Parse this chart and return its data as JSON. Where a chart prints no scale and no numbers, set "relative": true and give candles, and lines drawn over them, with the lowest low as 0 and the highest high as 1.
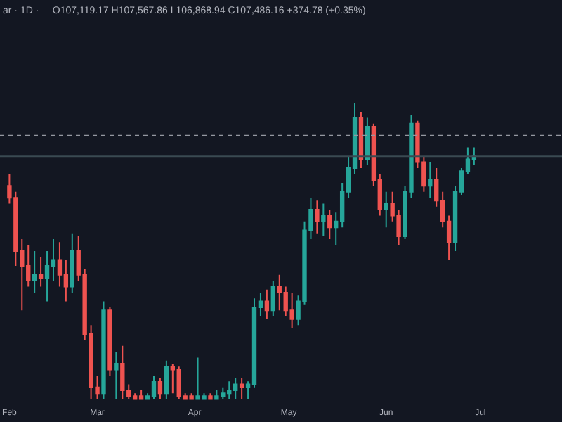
{
  "chart_data": {
    "type": "candlestick",
    "relative": true,
    "title": "ar · 1D ·",
    "subtitle": "O107,119.17 H107,567.86 L106,868.94 C107,486.16 +374.78 (+0.35%)",
    "x": [
      "--02-01",
      "--02-03",
      "--02-05",
      "--02-07",
      "--02-09",
      "--02-11",
      "--02-13",
      "--02-15",
      "--02-17",
      "--02-19",
      "--02-21",
      "--02-23",
      "--02-25",
      "--02-27",
      "--03-01",
      "--03-03",
      "--03-05",
      "--03-07",
      "--03-09",
      "--03-11",
      "--03-13",
      "--03-15",
      "--03-17",
      "--03-19",
      "--03-21",
      "--03-23",
      "--03-25",
      "--03-27",
      "--03-29",
      "--03-31",
      "--04-02",
      "--04-04",
      "--04-06",
      "--04-08",
      "--04-10",
      "--04-12",
      "--04-14",
      "--04-16",
      "--04-18",
      "--04-20",
      "--04-22",
      "--04-24",
      "--04-26",
      "--04-28",
      "--04-30",
      "--05-02",
      "--05-04",
      "--05-06",
      "--05-08",
      "--05-10",
      "--05-12",
      "--05-14",
      "--05-16",
      "--05-18",
      "--05-20",
      "--05-22",
      "--05-24",
      "--05-26",
      "--05-28",
      "--05-30",
      "--06-01",
      "--06-03",
      "--06-05",
      "--06-07",
      "--06-09",
      "--06-11",
      "--06-13",
      "--06-15",
      "--06-17",
      "--06-19",
      "--06-21",
      "--06-23",
      "--06-25",
      "--06-27",
      "--06-29"
    ],
    "ohlc": [
      [
        0.72,
        0.76,
        0.66,
        0.68
      ],
      [
        0.68,
        0.7,
        0.45,
        0.5
      ],
      [
        0.5,
        0.54,
        0.3,
        0.45
      ],
      [
        0.45,
        0.52,
        0.38,
        0.4
      ],
      [
        0.4,
        0.5,
        0.36,
        0.42
      ],
      [
        0.42,
        0.48,
        0.38,
        0.41
      ],
      [
        0.41,
        0.5,
        0.33,
        0.45
      ],
      [
        0.45,
        0.54,
        0.4,
        0.47
      ],
      [
        0.47,
        0.53,
        0.38,
        0.42
      ],
      [
        0.42,
        0.47,
        0.33,
        0.38
      ],
      [
        0.38,
        0.56,
        0.36,
        0.5
      ],
      [
        0.5,
        0.55,
        0.4,
        0.42
      ],
      [
        0.42,
        0.44,
        0.2,
        0.22
      ],
      [
        0.22,
        0.25,
        0,
        0.04
      ],
      [
        0.04,
        0.08,
        0,
        0.02
      ],
      [
        0.02,
        0.33,
        0,
        0.3
      ],
      [
        0.3,
        0.31,
        0.08,
        0.1
      ],
      [
        0.1,
        0.16,
        0,
        0.12
      ],
      [
        0.12,
        0.18,
        0,
        0.03
      ],
      [
        0.03,
        0.05,
        0,
        0.01
      ],
      [
        0.01,
        0.02,
        0,
        0.0
      ],
      [
        0.01,
        0.03,
        0,
        0.0
      ],
      [
        0.0,
        0.02,
        0,
        0.01
      ],
      [
        0.01,
        0.08,
        0,
        0.06
      ],
      [
        0.06,
        0.07,
        0,
        0.02
      ],
      [
        0.02,
        0.13,
        0,
        0.11
      ],
      [
        0.11,
        0.12,
        0.02,
        0.1
      ],
      [
        0.1,
        0.11,
        0,
        0.01
      ],
      [
        0.01,
        0.02,
        0,
        0.0
      ],
      [
        0.01,
        0.02,
        0,
        0.0
      ],
      [
        0.0,
        0.14,
        0,
        0.01
      ],
      [
        0.0,
        0.02,
        0,
        0.01
      ],
      [
        0.01,
        0.02,
        0,
        0.0
      ],
      [
        0.0,
        0.03,
        0,
        0.01
      ],
      [
        0.01,
        0.04,
        0,
        0.02
      ],
      [
        0.02,
        0.06,
        0,
        0.03
      ],
      [
        0.03,
        0.07,
        0,
        0.05
      ],
      [
        0.05,
        0.07,
        0,
        0.04
      ],
      [
        0.04,
        0.06,
        0,
        0.05
      ],
      [
        0.05,
        0.34,
        0.04,
        0.31
      ],
      [
        0.31,
        0.36,
        0.28,
        0.33
      ],
      [
        0.33,
        0.37,
        0.27,
        0.3
      ],
      [
        0.3,
        0.4,
        0.28,
        0.38
      ],
      [
        0.38,
        0.42,
        0.3,
        0.36
      ],
      [
        0.36,
        0.38,
        0.28,
        0.3
      ],
      [
        0.3,
        0.36,
        0.24,
        0.27
      ],
      [
        0.27,
        0.35,
        0.25,
        0.33
      ],
      [
        0.33,
        0.6,
        0.32,
        0.57
      ],
      [
        0.57,
        0.68,
        0.54,
        0.64
      ],
      [
        0.64,
        0.67,
        0.56,
        0.6
      ],
      [
        0.6,
        0.66,
        0.55,
        0.62
      ],
      [
        0.62,
        0.64,
        0.54,
        0.58
      ],
      [
        0.58,
        0.63,
        0.52,
        0.6
      ],
      [
        0.6,
        0.73,
        0.58,
        0.7
      ],
      [
        0.7,
        0.82,
        0.68,
        0.78
      ],
      [
        0.78,
        1.0,
        0.76,
        0.95
      ],
      [
        0.95,
        0.97,
        0.78,
        0.81
      ],
      [
        0.81,
        0.95,
        0.79,
        0.92
      ],
      [
        0.92,
        0.93,
        0.72,
        0.74
      ],
      [
        0.74,
        0.76,
        0.62,
        0.64
      ],
      [
        0.64,
        0.7,
        0.58,
        0.66
      ],
      [
        0.66,
        0.7,
        0.6,
        0.62
      ],
      [
        0.62,
        0.64,
        0.52,
        0.55
      ],
      [
        0.55,
        0.72,
        0.54,
        0.7
      ],
      [
        0.7,
        0.96,
        0.68,
        0.93
      ],
      [
        0.93,
        0.94,
        0.78,
        0.8
      ],
      [
        0.8,
        0.82,
        0.7,
        0.72
      ],
      [
        0.72,
        0.8,
        0.68,
        0.74
      ],
      [
        0.74,
        0.78,
        0.65,
        0.67
      ],
      [
        0.67,
        0.7,
        0.58,
        0.6
      ],
      [
        0.6,
        0.62,
        0.47,
        0.53
      ],
      [
        0.53,
        0.72,
        0.5,
        0.7
      ],
      [
        0.7,
        0.78,
        0.69,
        0.77
      ],
      [
        0.77,
        0.85,
        0.76,
        0.81
      ],
      [
        0.81,
        0.85,
        0.79,
        0.82
      ]
    ],
    "colors": [
      "#ef5350",
      "#ef5350",
      "#ef5350",
      "#ef5350",
      "#26a69a",
      "#ef5350",
      "#26a69a",
      "#26a69a",
      "#ef5350",
      "#ef5350",
      "#26a69a",
      "#ef5350",
      "#ef5350",
      "#ef5350",
      "#ef5350",
      "#26a69a",
      "#ef5350",
      "#26a69a",
      "#ef5350",
      "#ef5350",
      "#ef5350",
      "#ef5350",
      "#26a69a",
      "#26a69a",
      "#ef5350",
      "#26a69a",
      "#ef5350",
      "#ef5350",
      "#ef5350",
      "#ef5350",
      "#26a69a",
      "#26a69a",
      "#ef5350",
      "#26a69a",
      "#26a69a",
      "#26a69a",
      "#26a69a",
      "#ef5350",
      "#26a69a",
      "#26a69a",
      "#26a69a",
      "#ef5350",
      "#26a69a",
      "#ef5350",
      "#ef5350",
      "#ef5350",
      "#26a69a",
      "#26a69a",
      "#26a69a",
      "#ef5350",
      "#26a69a",
      "#ef5350",
      "#26a69a",
      "#26a69a",
      "#26a69a",
      "#26a69a",
      "#ef5350",
      "#26a69a",
      "#ef5350",
      "#ef5350",
      "#26a69a",
      "#ef5350",
      "#ef5350",
      "#26a69a",
      "#26a69a",
      "#ef5350",
      "#ef5350",
      "#26a69a",
      "#ef5350",
      "#ef5350",
      "#ef5350",
      "#26a69a",
      "#26a69a",
      "#26a69a",
      "#26a69a"
    ],
    "xlim": [
      "--01-29",
      "--07-27"
    ],
    "xticks": [
      {
        "value": "--02-01",
        "label": "Feb"
      },
      {
        "value": "--03-01",
        "label": "Mar"
      },
      {
        "value": "--04-01",
        "label": "Apr"
      },
      {
        "value": "--05-01",
        "label": "May"
      },
      {
        "value": "--06-01",
        "label": "Jun"
      },
      {
        "value": "--07-01",
        "label": "Jul"
      }
    ],
    "tick_labels": "x",
    "grid": false,
    "ref_lines": [
      {
        "axis": "y",
        "value": 0.89,
        "color": "#9598a1",
        "line_style": "dotted"
      },
      {
        "axis": "y",
        "value": 0.82,
        "color": "#3a4a52",
        "line_style": "solid"
      }
    ]
  }
}
